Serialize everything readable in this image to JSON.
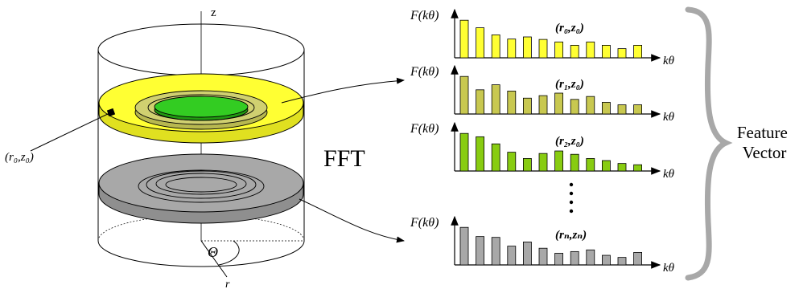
{
  "cylinder": {
    "axis_z_label": "z",
    "axis_r_label": "r",
    "angle_label": "Θ",
    "point_label": "(r₀,z₀)",
    "slice_colors": {
      "top_outer": "#ffff33",
      "top_mid": "#d0d070",
      "top_inner": "#33cc22",
      "bottom": "#a8a8a8"
    }
  },
  "fft_label": "FFT",
  "feature_vector_label": [
    "Feature",
    "Vector"
  ],
  "spectra": [
    {
      "label": "(r₀,z₀)",
      "color": "#ffff33",
      "values": [
        0.9,
        0.72,
        0.55,
        0.45,
        0.5,
        0.44,
        0.38,
        0.3,
        0.38,
        0.3,
        0.22,
        0.3
      ]
    },
    {
      "label": "(r₁,z₀)",
      "color": "#c8c850",
      "values": [
        0.9,
        0.58,
        0.7,
        0.55,
        0.38,
        0.44,
        0.5,
        0.35,
        0.42,
        0.28,
        0.22,
        0.22
      ]
    },
    {
      "label": "(r₂,z₀)",
      "color": "#88cc11",
      "values": [
        0.9,
        0.82,
        0.65,
        0.45,
        0.3,
        0.42,
        0.48,
        0.4,
        0.3,
        0.25,
        0.18,
        0.15
      ]
    },
    {
      "label": "(rₙ,zₙ)",
      "color": "#a8a8a8",
      "values": [
        0.9,
        0.68,
        0.66,
        0.45,
        0.55,
        0.4,
        0.28,
        0.32,
        0.36,
        0.23,
        0.18,
        0.3
      ]
    }
  ],
  "axes": {
    "y_label": "F(kθ)",
    "x_label": "kθ"
  },
  "ellipsis": "⋮"
}
